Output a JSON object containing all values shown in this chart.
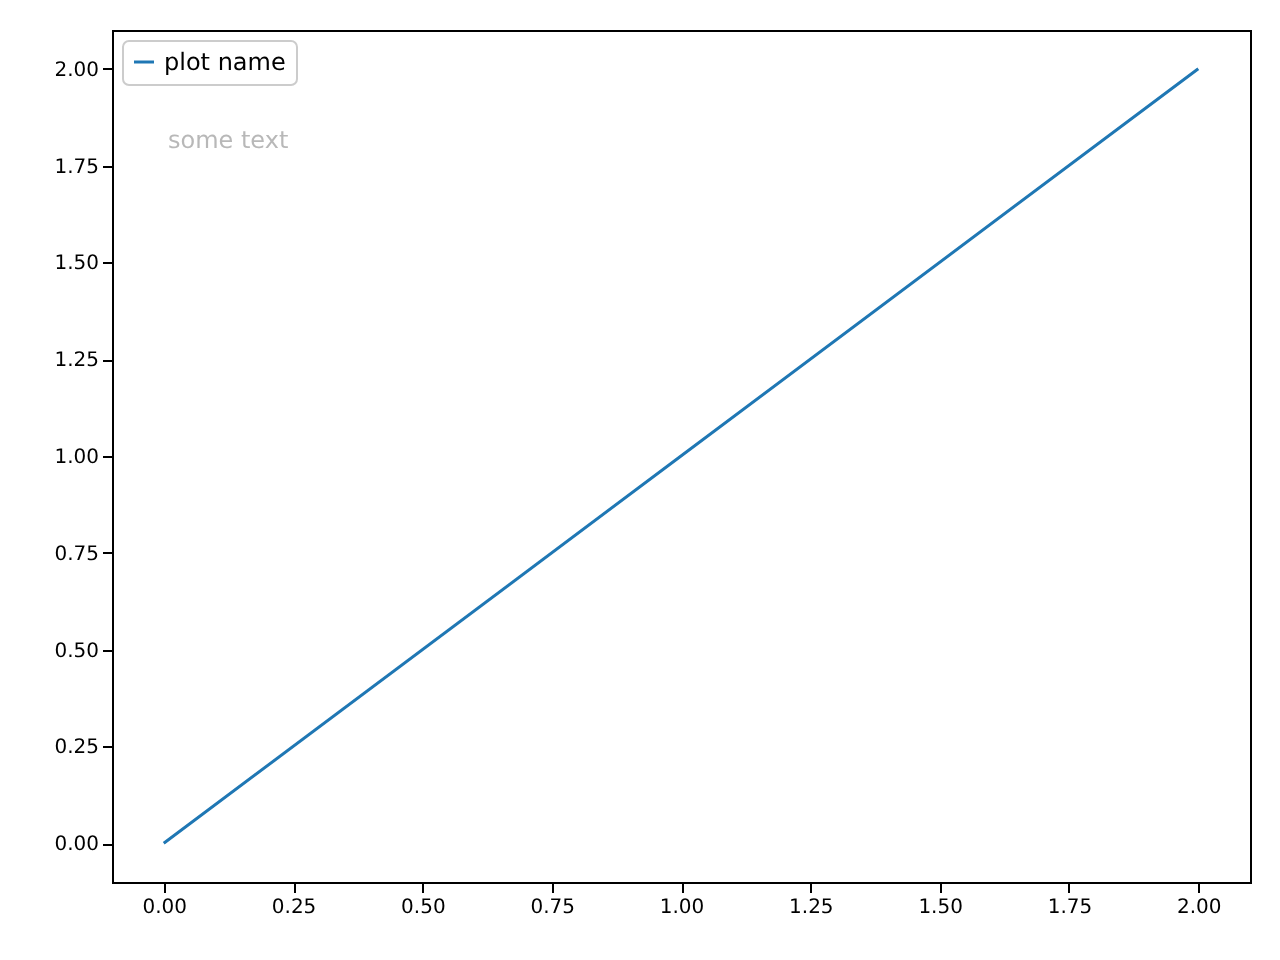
{
  "chart_data": {
    "type": "line",
    "x": [
      0,
      1,
      2
    ],
    "series": [
      {
        "name": "plot name",
        "color": "#1f77b4",
        "values": [
          0,
          1,
          2
        ]
      }
    ],
    "xlim": [
      -0.1,
      2.1
    ],
    "ylim": [
      -0.1,
      2.1
    ],
    "xticks": [
      {
        "value": 0,
        "label": "0.00"
      },
      {
        "value": 0.25,
        "label": "0.25"
      },
      {
        "value": 0.5,
        "label": "0.50"
      },
      {
        "value": 0.75,
        "label": "0.75"
      },
      {
        "value": 1,
        "label": "1.00"
      },
      {
        "value": 1.25,
        "label": "1.25"
      },
      {
        "value": 1.5,
        "label": "1.50"
      },
      {
        "value": 1.75,
        "label": "1.75"
      },
      {
        "value": 2,
        "label": "2.00"
      }
    ],
    "yticks": [
      {
        "value": 0,
        "label": "0.00"
      },
      {
        "value": 0.25,
        "label": "0.25"
      },
      {
        "value": 0.5,
        "label": "0.50"
      },
      {
        "value": 0.75,
        "label": "0.75"
      },
      {
        "value": 1,
        "label": "1.00"
      },
      {
        "value": 1.25,
        "label": "1.25"
      },
      {
        "value": 1.5,
        "label": "1.50"
      },
      {
        "value": 1.75,
        "label": "1.75"
      },
      {
        "value": 2,
        "label": "2.00"
      }
    ],
    "annotations": [
      "some text"
    ],
    "legend": "top left",
    "grid": false,
    "marker": "none",
    "line_style": "solid"
  }
}
